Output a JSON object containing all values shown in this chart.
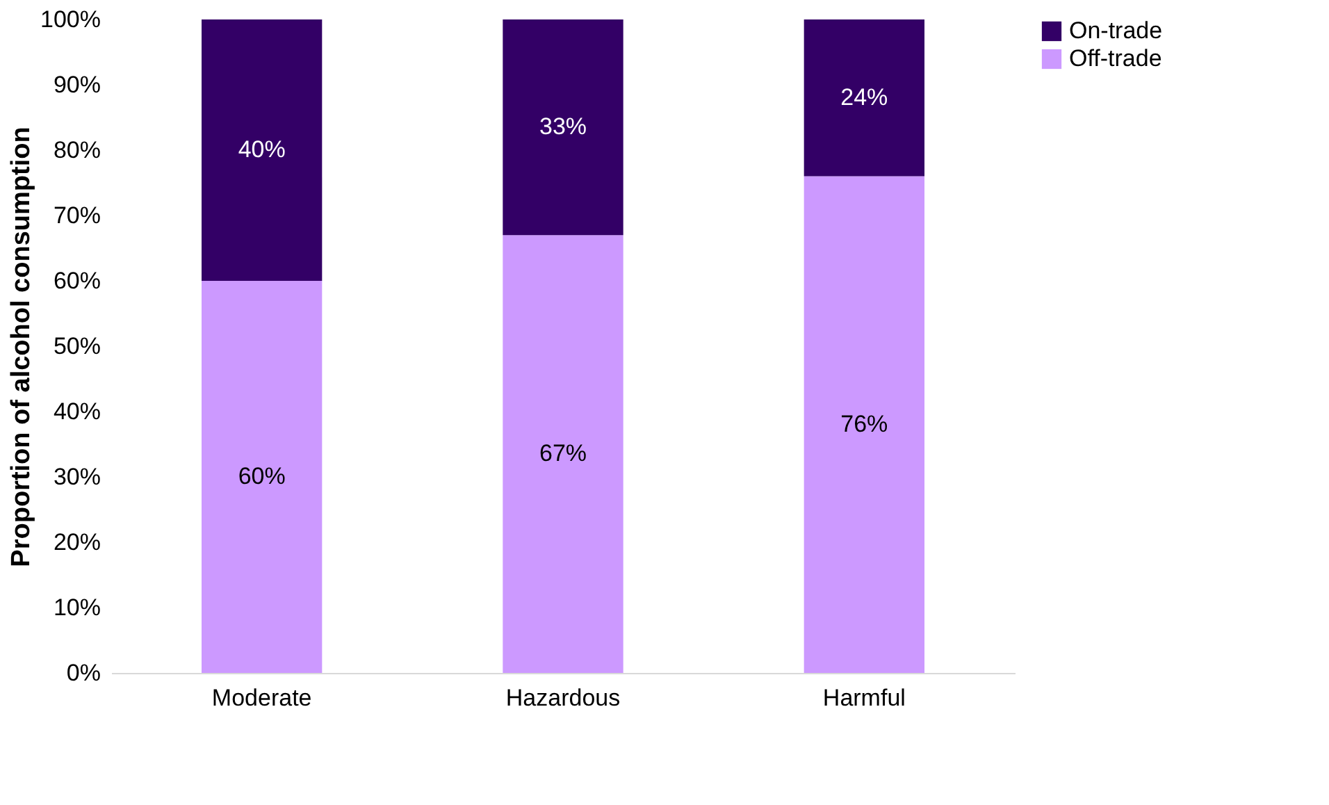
{
  "chart_data": {
    "type": "bar",
    "stacked": true,
    "ylabel": "Proportion of alcohol consumption",
    "categories": [
      "Moderate",
      "Hazardous",
      "Harmful"
    ],
    "series": [
      {
        "name": "Off-trade",
        "color": "#cc99ff",
        "values": [
          60,
          67,
          76
        ],
        "value_labels": [
          "60%",
          "67%",
          "76%"
        ]
      },
      {
        "name": "On-trade",
        "color": "#330066",
        "values": [
          40,
          33,
          24
        ],
        "value_labels": [
          "40%",
          "33%",
          "24%"
        ]
      }
    ],
    "ylim": [
      0,
      100
    ],
    "yticks": [
      {
        "value": 0,
        "label": "0%"
      },
      {
        "value": 10,
        "label": "10%"
      },
      {
        "value": 20,
        "label": "20%"
      },
      {
        "value": 30,
        "label": "30%"
      },
      {
        "value": 40,
        "label": "40%"
      },
      {
        "value": 50,
        "label": "50%"
      },
      {
        "value": 60,
        "label": "60%"
      },
      {
        "value": 70,
        "label": "70%"
      },
      {
        "value": 80,
        "label": "80%"
      },
      {
        "value": 90,
        "label": "90%"
      },
      {
        "value": 100,
        "label": "100%"
      }
    ],
    "grid": false,
    "legend": "right"
  }
}
